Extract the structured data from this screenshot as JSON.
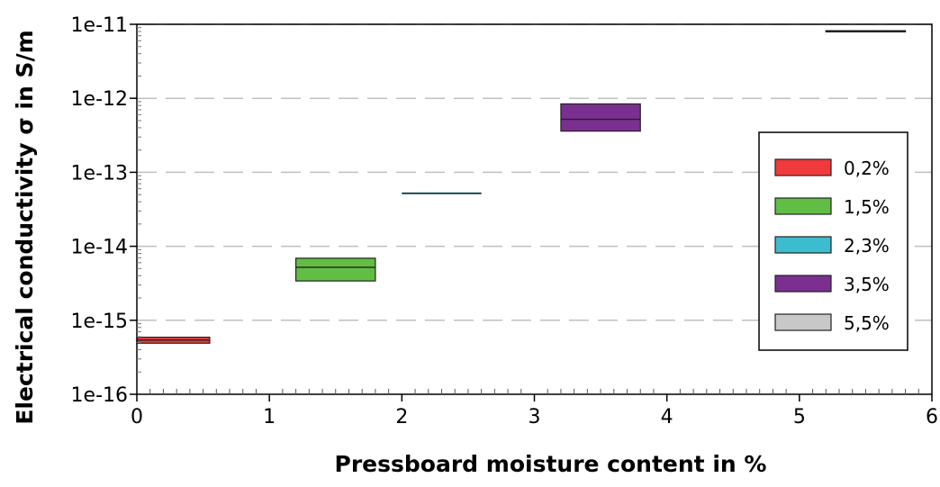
{
  "chart_data": {
    "type": "box",
    "title": "",
    "xlabel": "Pressboard moisture content in %",
    "ylabel": "Electrical conductivity σ in S/m",
    "xlim": [
      0,
      6
    ],
    "ylim_exponent": [
      -16,
      -11
    ],
    "y_scale": "log",
    "x_ticks": [
      "0",
      "1",
      "2",
      "3",
      "4",
      "5",
      "6"
    ],
    "y_ticks": [
      "1e-16",
      "1e-15",
      "1e-14",
      "1e-13",
      "1e-12",
      "1e-11"
    ],
    "grid": "horizontal dashed at major ticks",
    "legend_position": "right",
    "series": [
      {
        "name": "0,2%",
        "color": "#ef3b3b",
        "x_range": [
          0.0,
          0.55
        ],
        "low": 4.9e-16,
        "median": 5.4e-16,
        "high": 5.9e-16
      },
      {
        "name": "1,5%",
        "color": "#62bd45",
        "x_range": [
          1.2,
          1.8
        ],
        "low": 3.4e-15,
        "median": 5.2e-15,
        "high": 6.9e-15
      },
      {
        "name": "2,3%",
        "color": "#3cbccf",
        "x_range": [
          2.0,
          2.6
        ],
        "low": 5.2e-14,
        "median": 5.2e-14,
        "high": 5.2e-14
      },
      {
        "name": "3,5%",
        "color": "#7a2f91",
        "x_range": [
          3.2,
          3.8
        ],
        "low": 3.6e-13,
        "median": 5.2e-13,
        "high": 8.4e-13
      },
      {
        "name": "5,5%",
        "color": "#c8c8c8",
        "x_range": [
          5.2,
          5.8
        ],
        "low": 7.9e-12,
        "median": 8.1e-12,
        "high": 8.2e-12
      }
    ]
  }
}
